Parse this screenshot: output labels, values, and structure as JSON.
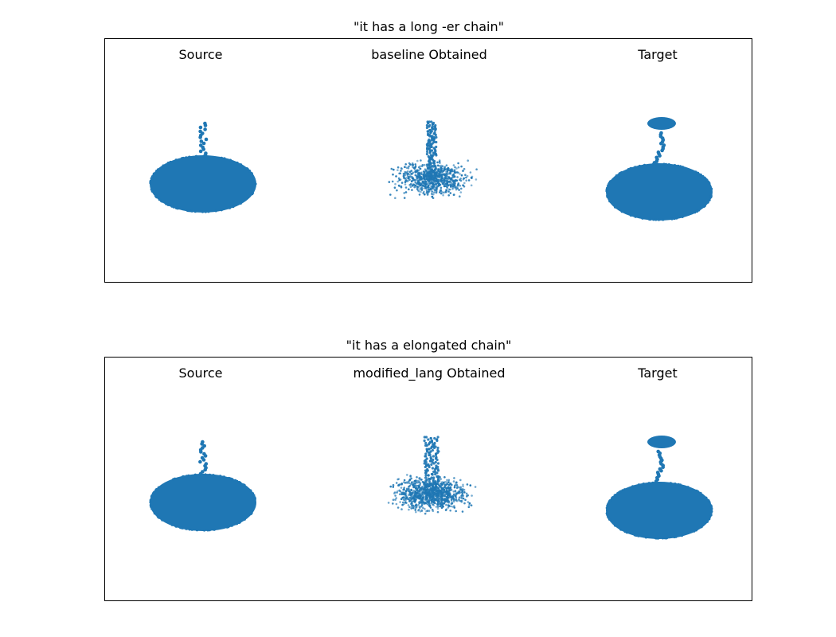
{
  "chart_data": [
    {
      "type": "scatter",
      "title": "\"it has a long -er chain\"",
      "subplots": [
        {
          "title": "Source",
          "shape": "source"
        },
        {
          "title": "baseline Obtained",
          "shape": "baseline"
        },
        {
          "title": "Target",
          "shape": "target"
        }
      ]
    },
    {
      "type": "scatter",
      "title": "\"it has a elongated chain\"",
      "subplots": [
        {
          "title": "Source",
          "shape": "source"
        },
        {
          "title": "modified_lang Obtained",
          "shape": "modified"
        },
        {
          "title": "Target",
          "shape": "target"
        }
      ]
    }
  ],
  "colors": {
    "points": "#1f77b4"
  }
}
